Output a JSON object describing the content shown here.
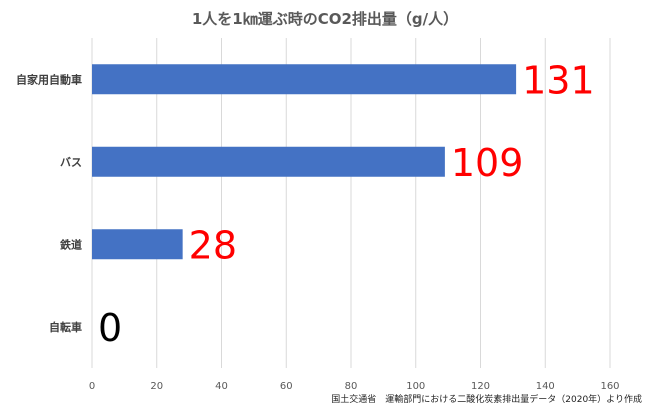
{
  "chart_data": {
    "type": "bar",
    "orientation": "horizontal",
    "title": "1人を1㎞運ぶ時のCO2排出量（g/人）",
    "categories": [
      "自家用自動車",
      "バス",
      "鉄道",
      "自転車"
    ],
    "values": [
      131,
      109,
      28,
      0
    ],
    "data_labels": [
      "131",
      "109",
      "28",
      "0"
    ],
    "xlim": [
      0,
      160
    ],
    "x_ticks": [
      0,
      20,
      40,
      60,
      80,
      100,
      120,
      140,
      160
    ],
    "grid": true,
    "legend": "none",
    "colors": {
      "bar": "#4472C4",
      "label_highlight": "#FF0000",
      "label_zero": "#000000",
      "grid": "#D9D9D9"
    }
  },
  "source_note": "国土交通省　運輸部門における二酸化炭素排出量データ（2020年）より作成"
}
